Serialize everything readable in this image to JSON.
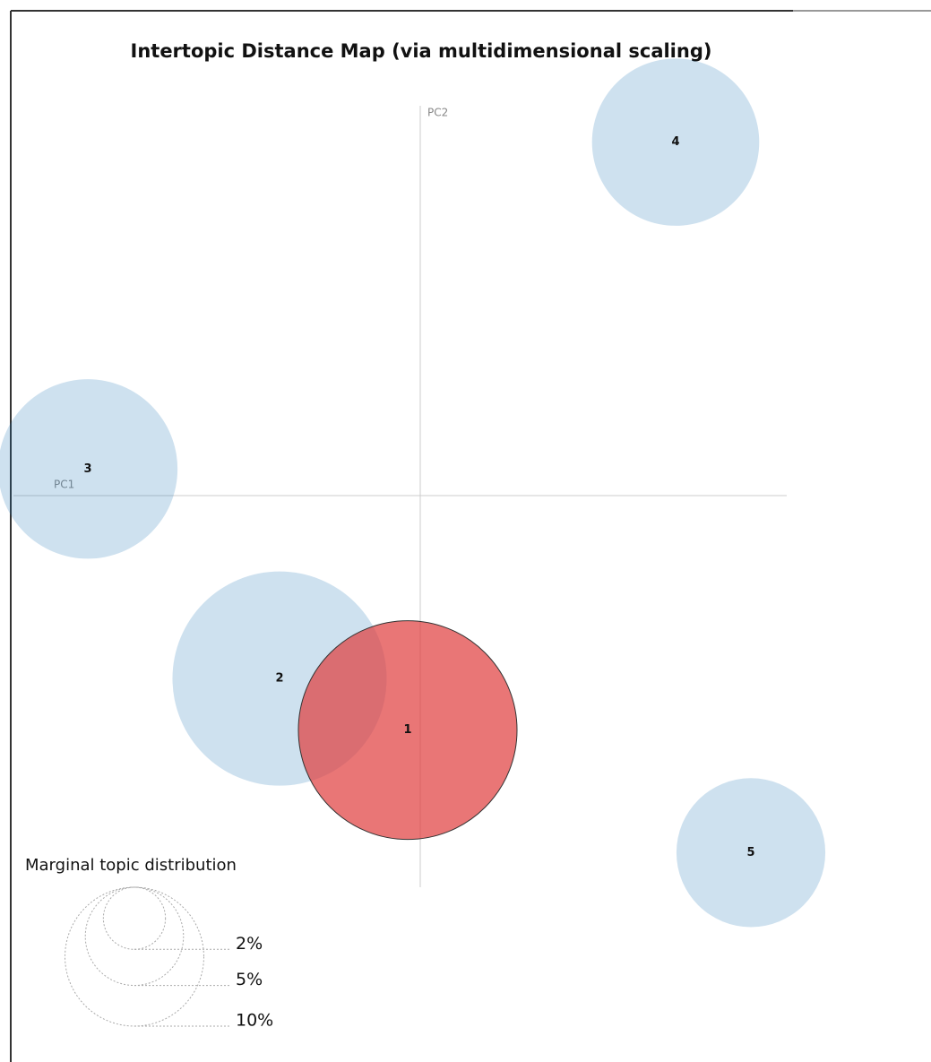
{
  "chart_data": {
    "type": "bubble",
    "title": "Intertopic Distance Map (via multidimensional scaling)",
    "x_label": "PC1",
    "y_label": "PC2",
    "categories": [
      "1",
      "2",
      "3",
      "4",
      "5"
    ],
    "x": [
      -0.014,
      -0.157,
      -0.371,
      0.285,
      0.369
    ],
    "values": [
      -0.264,
      -0.206,
      0.03,
      0.398,
      -0.402
    ],
    "sizes": [
      24.8,
      23.8,
      16.7,
      14.5,
      11.5
    ],
    "colors": [
      "#e03c3c",
      "#1f77b4",
      "#1f77b4",
      "#1f77b4",
      "#1f77b4"
    ],
    "xlim": [
      -0.454,
      0.409
    ],
    "ylim": [
      -0.441,
      0.439
    ],
    "size_legend": {
      "title": "Marginal topic distribution",
      "values": [
        {
          "value": 2,
          "label": "2%"
        },
        {
          "value": 5,
          "label": "5%"
        },
        {
          "value": 10,
          "label": "10%"
        }
      ]
    }
  }
}
